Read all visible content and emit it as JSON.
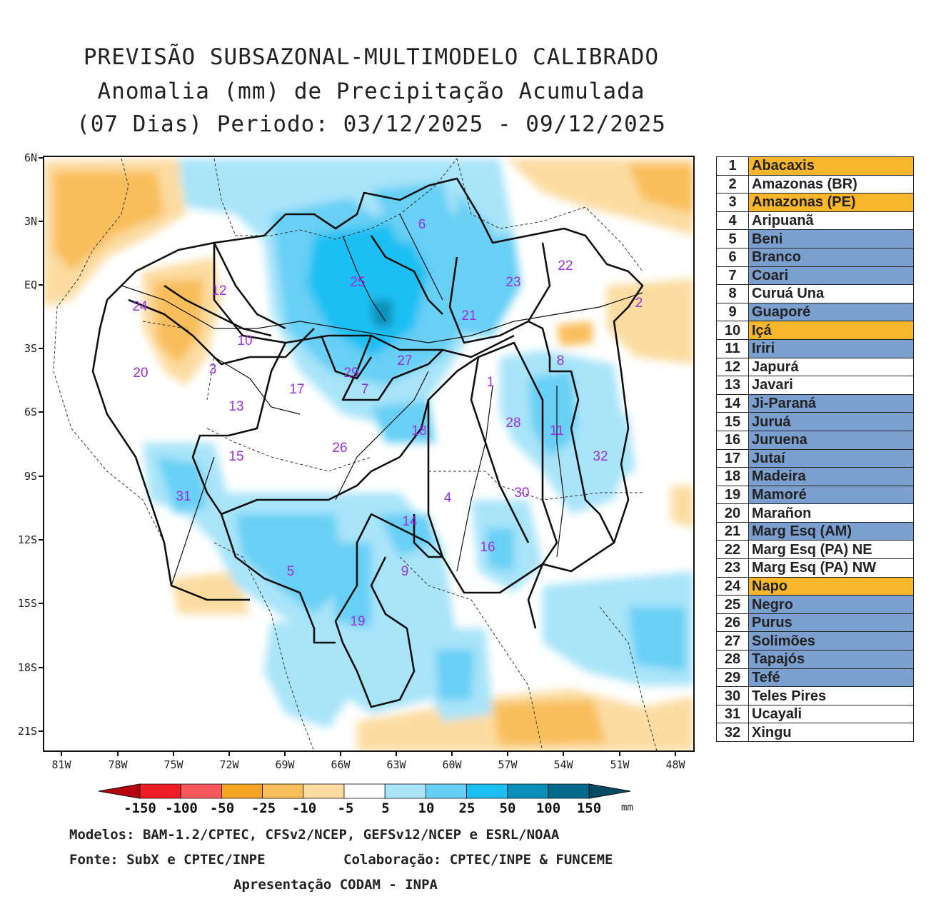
{
  "title": {
    "line1": "PREVISÃO SUBSAZONAL-MULTIMODELO CALIBRADO",
    "line2": "Anomalia (mm) de Precipitação Acumulada",
    "line3": "(07 Dias) Periodo: 03/12/2025 - 09/12/2025"
  },
  "axes": {
    "lat_labels": [
      "6N",
      "3N",
      "EQ",
      "3S",
      "6S",
      "9S",
      "12S",
      "15S",
      "18S",
      "21S"
    ],
    "lon_labels": [
      "81W",
      "78W",
      "75W",
      "72W",
      "69W",
      "66W",
      "63W",
      "60W",
      "57W",
      "54W",
      "51W",
      "48W"
    ]
  },
  "colorbar": {
    "labels": [
      "-150",
      "-100",
      "-50",
      "-25",
      "-10",
      "-5",
      "5",
      "10",
      "25",
      "50",
      "100",
      "150"
    ],
    "unit": "mm",
    "colors": [
      "#b5000e",
      "#ee1c24",
      "#f5575b",
      "#f5a524",
      "#f9be5c",
      "#fcdca1",
      "#ffffff",
      "#a9e4f9",
      "#67cff5",
      "#1bbff2",
      "#0a8fb8",
      "#056a8b",
      "#034b63"
    ]
  },
  "basins": [
    {
      "num": "1",
      "name": "Abacaxis",
      "color": "#f8b62a"
    },
    {
      "num": "2",
      "name": "Amazonas (BR)",
      "color": "#ffffff"
    },
    {
      "num": "3",
      "name": "Amazonas (PE)",
      "color": "#f8b62a"
    },
    {
      "num": "4",
      "name": "Aripuanã",
      "color": "#ffffff"
    },
    {
      "num": "5",
      "name": "Beni",
      "color": "#7b9fcf"
    },
    {
      "num": "6",
      "name": "Branco",
      "color": "#7b9fcf"
    },
    {
      "num": "7",
      "name": "Coari",
      "color": "#7b9fcf"
    },
    {
      "num": "8",
      "name": "Curuá Una",
      "color": "#ffffff"
    },
    {
      "num": "9",
      "name": "Guaporé",
      "color": "#7b9fcf"
    },
    {
      "num": "10",
      "name": "Içá",
      "color": "#f8b62a"
    },
    {
      "num": "11",
      "name": "Iriri",
      "color": "#7b9fcf"
    },
    {
      "num": "12",
      "name": "Japurá",
      "color": "#ffffff"
    },
    {
      "num": "13",
      "name": "Javari",
      "color": "#ffffff"
    },
    {
      "num": "14",
      "name": "Ji-Paraná",
      "color": "#7b9fcf"
    },
    {
      "num": "15",
      "name": "Juruá",
      "color": "#7b9fcf"
    },
    {
      "num": "16",
      "name": "Juruena",
      "color": "#7b9fcf"
    },
    {
      "num": "17",
      "name": "Jutaí",
      "color": "#7b9fcf"
    },
    {
      "num": "18",
      "name": "Madeira",
      "color": "#7b9fcf"
    },
    {
      "num": "19",
      "name": "Mamoré",
      "color": "#7b9fcf"
    },
    {
      "num": "20",
      "name": "Marañon",
      "color": "#ffffff"
    },
    {
      "num": "21",
      "name": "Marg Esq (AM)",
      "color": "#7b9fcf"
    },
    {
      "num": "22",
      "name": "Marg Esq (PA) NE",
      "color": "#ffffff"
    },
    {
      "num": "23",
      "name": "Marg Esq (PA) NW",
      "color": "#ffffff"
    },
    {
      "num": "24",
      "name": "Napo",
      "color": "#f8b62a"
    },
    {
      "num": "25",
      "name": "Negro",
      "color": "#7b9fcf"
    },
    {
      "num": "26",
      "name": "Purus",
      "color": "#7b9fcf"
    },
    {
      "num": "27",
      "name": "Solimões",
      "color": "#7b9fcf"
    },
    {
      "num": "28",
      "name": "Tapajós",
      "color": "#7b9fcf"
    },
    {
      "num": "29",
      "name": "Tefé",
      "color": "#7b9fcf"
    },
    {
      "num": "30",
      "name": "Teles Pires",
      "color": "#ffffff"
    },
    {
      "num": "31",
      "name": "Ucayali",
      "color": "#ffffff"
    },
    {
      "num": "32",
      "name": "Xingu",
      "color": "#ffffff"
    }
  ],
  "footer": {
    "models": "Modelos: BAM-1.2/CPTEC, CFSv2/NCEP, GEFSv12/NCEP e ESRL/NOAA",
    "source": "Fonte: SubX e CPTEC/INPE",
    "collab": "Colaboração: CPTEC/INPE & FUNCEME",
    "presentation": "Apresentação CODAM - INPA"
  }
}
